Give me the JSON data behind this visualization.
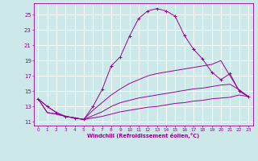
{
  "xlabel": "Windchill (Refroidissement éolien,°C)",
  "bg_color": "#cde8e8",
  "line_color": "#990099",
  "grid_color": "#b8d8d8",
  "xlim": [
    -0.5,
    23.5
  ],
  "ylim": [
    10.5,
    26.5
  ],
  "xticks": [
    0,
    1,
    2,
    3,
    4,
    5,
    6,
    7,
    8,
    9,
    10,
    11,
    12,
    13,
    14,
    15,
    16,
    17,
    18,
    19,
    20,
    21,
    22,
    23
  ],
  "yticks": [
    11,
    13,
    15,
    17,
    19,
    21,
    23,
    25
  ],
  "lines": [
    {
      "x": [
        0,
        1,
        2,
        3,
        4,
        5,
        6,
        7,
        8,
        9,
        10,
        11,
        12,
        13,
        14,
        15,
        16,
        17,
        18,
        19,
        20,
        21,
        22,
        23
      ],
      "y": [
        14.0,
        13.0,
        12.2,
        11.7,
        11.5,
        11.3,
        13.0,
        15.2,
        18.3,
        19.5,
        22.2,
        24.5,
        25.5,
        25.8,
        25.5,
        24.8,
        22.3,
        20.5,
        19.2,
        17.5,
        16.5,
        17.3,
        15.0,
        14.3
      ],
      "marker": true
    },
    {
      "x": [
        0,
        1,
        2,
        3,
        4,
        5,
        6,
        7,
        8,
        9,
        10,
        11,
        12,
        13,
        14,
        15,
        16,
        17,
        18,
        19,
        20,
        21,
        22,
        23
      ],
      "y": [
        14.0,
        13.0,
        12.2,
        11.7,
        11.5,
        11.3,
        12.5,
        13.5,
        14.5,
        15.3,
        16.0,
        16.5,
        17.0,
        17.3,
        17.5,
        17.7,
        17.9,
        18.1,
        18.3,
        18.5,
        19.0,
        17.0,
        15.1,
        14.3
      ],
      "marker": false
    },
    {
      "x": [
        0,
        1,
        2,
        3,
        4,
        5,
        6,
        7,
        8,
        9,
        10,
        11,
        12,
        13,
        14,
        15,
        16,
        17,
        18,
        19,
        20,
        21,
        22,
        23
      ],
      "y": [
        14.0,
        12.2,
        12.0,
        11.7,
        11.5,
        11.3,
        11.8,
        12.3,
        13.0,
        13.5,
        13.8,
        14.1,
        14.3,
        14.5,
        14.7,
        14.9,
        15.1,
        15.3,
        15.4,
        15.6,
        15.8,
        15.9,
        15.2,
        14.3
      ],
      "marker": false
    },
    {
      "x": [
        0,
        1,
        2,
        3,
        4,
        5,
        6,
        7,
        8,
        9,
        10,
        11,
        12,
        13,
        14,
        15,
        16,
        17,
        18,
        19,
        20,
        21,
        22,
        23
      ],
      "y": [
        14.0,
        12.2,
        12.0,
        11.7,
        11.5,
        11.3,
        11.5,
        11.7,
        12.0,
        12.3,
        12.5,
        12.7,
        12.9,
        13.0,
        13.2,
        13.4,
        13.5,
        13.7,
        13.8,
        14.0,
        14.1,
        14.2,
        14.5,
        14.3
      ],
      "marker": false
    }
  ]
}
